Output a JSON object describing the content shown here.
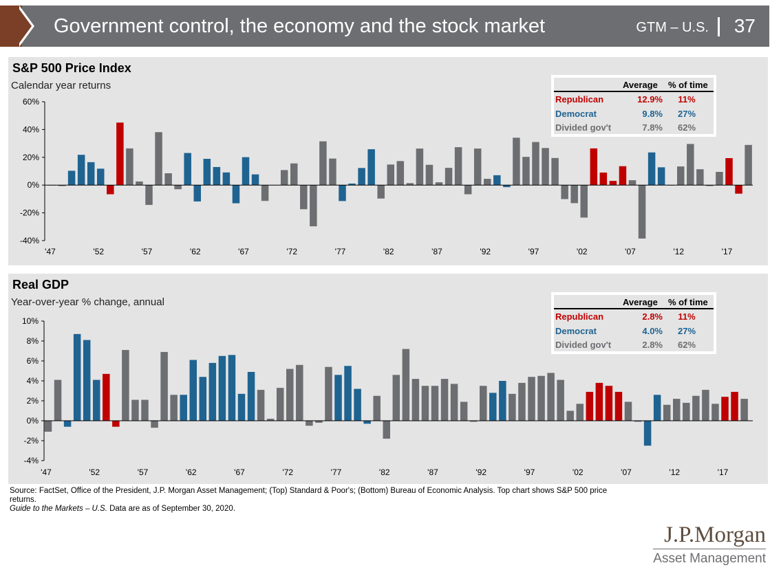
{
  "header": {
    "title": "Government control, the economy and the stock market",
    "gtm": "GTM – U.S.",
    "page_number": "37"
  },
  "colors": {
    "republican": "#c00000",
    "democrat": "#1f6391",
    "divided": "#6d6e71",
    "header_bg": "#6d6e71",
    "header_tab": "#7b3f27",
    "panel_bg": "#e4e4e4"
  },
  "panel1": {
    "title": "S&P 500 Price Index",
    "subtitle": "Calendar year returns",
    "legend": {
      "col_average": "Average",
      "col_pct": "% of time",
      "rows": [
        {
          "name": "Republican",
          "average": "12.9%",
          "pct": "11%",
          "color": "#c00000"
        },
        {
          "name": "Democrat",
          "average": "9.8%",
          "pct": "27%",
          "color": "#1f6391"
        },
        {
          "name": "Divided gov't",
          "average": "7.8%",
          "pct": "62%",
          "color": "#6d6e71"
        }
      ]
    }
  },
  "panel2": {
    "title": "Real GDP",
    "subtitle": "Year-over-year % change, annual",
    "legend": {
      "col_average": "Average",
      "col_pct": "% of time",
      "rows": [
        {
          "name": "Republican",
          "average": "2.8%",
          "pct": "11%",
          "color": "#c00000"
        },
        {
          "name": "Democrat",
          "average": "4.0%",
          "pct": "27%",
          "color": "#1f6391"
        },
        {
          "name": "Divided gov't",
          "average": "2.8%",
          "pct": "62%",
          "color": "#6d6e71"
        }
      ]
    }
  },
  "chart_data": [
    {
      "type": "bar",
      "title": "S&P 500 Price Index",
      "subtitle": "Calendar year returns",
      "ylim": [
        -40,
        60
      ],
      "yticks": [
        "60%",
        "40%",
        "20%",
        "0%",
        "-20%",
        "-40%"
      ],
      "ytick_values": [
        60,
        40,
        20,
        0,
        -20,
        -40
      ],
      "xtick_labels": [
        "'47",
        "'52",
        "'57",
        "'62",
        "'67",
        "'72",
        "'77",
        "'82",
        "'87",
        "'92",
        "'97",
        "'02",
        "'07",
        "'12",
        "'17"
      ],
      "xtick_years": [
        1947,
        1952,
        1957,
        1962,
        1967,
        1972,
        1977,
        1982,
        1987,
        1992,
        1997,
        2002,
        2007,
        2012,
        2017
      ],
      "grid": false,
      "categories": [
        1947,
        1948,
        1949,
        1950,
        1951,
        1952,
        1953,
        1954,
        1955,
        1956,
        1957,
        1958,
        1959,
        1960,
        1961,
        1962,
        1963,
        1964,
        1965,
        1966,
        1967,
        1968,
        1969,
        1970,
        1971,
        1972,
        1973,
        1974,
        1975,
        1976,
        1977,
        1978,
        1979,
        1980,
        1981,
        1982,
        1983,
        1984,
        1985,
        1986,
        1987,
        1988,
        1989,
        1990,
        1991,
        1992,
        1993,
        1994,
        1995,
        1996,
        1997,
        1998,
        1999,
        2000,
        2001,
        2002,
        2003,
        2004,
        2005,
        2006,
        2007,
        2008,
        2009,
        2010,
        2011,
        2012,
        2013,
        2014,
        2015,
        2016,
        2017,
        2018,
        2019
      ],
      "values": [
        0.0,
        -0.7,
        10.3,
        21.8,
        16.5,
        11.8,
        -6.6,
        45.0,
        26.4,
        2.6,
        -14.3,
        38.1,
        8.5,
        -3.0,
        23.1,
        -11.8,
        18.9,
        13.0,
        9.1,
        -13.1,
        20.1,
        7.7,
        -11.4,
        0.1,
        10.8,
        15.6,
        -17.4,
        -29.7,
        31.5,
        19.1,
        -11.5,
        1.1,
        12.3,
        25.8,
        -9.7,
        14.8,
        17.3,
        1.4,
        26.3,
        14.6,
        2.0,
        12.4,
        27.3,
        -6.6,
        26.3,
        4.5,
        7.1,
        -1.5,
        34.1,
        20.3,
        31.0,
        26.7,
        19.5,
        -10.1,
        -13.0,
        -23.4,
        26.4,
        9.0,
        3.0,
        13.6,
        3.5,
        -38.5,
        23.5,
        12.8,
        0.0,
        13.4,
        29.6,
        11.4,
        -0.7,
        9.5,
        19.4,
        -6.2,
        28.9
      ],
      "party": [
        "G",
        "G",
        "D",
        "D",
        "D",
        "D",
        "R",
        "R",
        "G",
        "G",
        "G",
        "G",
        "G",
        "G",
        "D",
        "D",
        "D",
        "D",
        "D",
        "D",
        "D",
        "D",
        "G",
        "G",
        "G",
        "G",
        "G",
        "G",
        "G",
        "G",
        "D",
        "D",
        "D",
        "D",
        "G",
        "G",
        "G",
        "G",
        "G",
        "G",
        "G",
        "G",
        "G",
        "G",
        "G",
        "G",
        "D",
        "D",
        "G",
        "G",
        "G",
        "G",
        "G",
        "G",
        "G",
        "G",
        "R",
        "R",
        "R",
        "R",
        "G",
        "G",
        "D",
        "D",
        "G",
        "G",
        "G",
        "G",
        "G",
        "G",
        "R",
        "R",
        "G"
      ]
    },
    {
      "type": "bar",
      "title": "Real GDP",
      "subtitle": "Year-over-year % change, annual",
      "ylim": [
        -4,
        10
      ],
      "yticks": [
        "10%",
        "8%",
        "6%",
        "4%",
        "2%",
        "0%",
        "-2%",
        "-4%"
      ],
      "ytick_values": [
        10,
        8,
        6,
        4,
        2,
        0,
        -2,
        -4
      ],
      "xtick_labels": [
        "'47",
        "'52",
        "'57",
        "'62",
        "'67",
        "'72",
        "'77",
        "'82",
        "'87",
        "'92",
        "'97",
        "'02",
        "'07",
        "'12",
        "'17"
      ],
      "xtick_years": [
        1947,
        1952,
        1957,
        1962,
        1967,
        1972,
        1977,
        1982,
        1987,
        1992,
        1997,
        2002,
        2007,
        2012,
        2017
      ],
      "grid": false,
      "categories": [
        1947,
        1948,
        1949,
        1950,
        1951,
        1952,
        1953,
        1954,
        1955,
        1956,
        1957,
        1958,
        1959,
        1960,
        1961,
        1962,
        1963,
        1964,
        1965,
        1966,
        1967,
        1968,
        1969,
        1970,
        1971,
        1972,
        1973,
        1974,
        1975,
        1976,
        1977,
        1978,
        1979,
        1980,
        1981,
        1982,
        1983,
        1984,
        1985,
        1986,
        1987,
        1988,
        1989,
        1990,
        1991,
        1992,
        1993,
        1994,
        1995,
        1996,
        1997,
        1998,
        1999,
        2000,
        2001,
        2002,
        2003,
        2004,
        2005,
        2006,
        2007,
        2008,
        2009,
        2010,
        2011,
        2012,
        2013,
        2014,
        2015,
        2016,
        2017,
        2018,
        2019
      ],
      "values": [
        -1.1,
        4.1,
        -0.6,
        8.7,
        8.1,
        4.1,
        4.7,
        -0.6,
        7.1,
        2.1,
        2.1,
        -0.7,
        6.9,
        2.6,
        2.6,
        6.1,
        4.4,
        5.8,
        6.5,
        6.6,
        2.7,
        4.9,
        3.1,
        0.2,
        3.3,
        5.2,
        5.6,
        -0.5,
        -0.2,
        5.4,
        4.6,
        5.5,
        3.2,
        -0.3,
        2.5,
        -1.8,
        4.6,
        7.2,
        4.2,
        3.5,
        3.5,
        4.2,
        3.7,
        1.9,
        -0.1,
        3.5,
        2.8,
        4.0,
        2.7,
        3.8,
        4.4,
        4.5,
        4.8,
        4.1,
        1.0,
        1.7,
        2.9,
        3.8,
        3.5,
        2.9,
        1.9,
        -0.1,
        -2.5,
        2.6,
        1.6,
        2.2,
        1.8,
        2.5,
        3.1,
        1.7,
        2.4,
        2.9,
        2.2
      ],
      "party": [
        "G",
        "G",
        "D",
        "D",
        "D",
        "D",
        "R",
        "R",
        "G",
        "G",
        "G",
        "G",
        "G",
        "G",
        "D",
        "D",
        "D",
        "D",
        "D",
        "D",
        "D",
        "D",
        "G",
        "G",
        "G",
        "G",
        "G",
        "G",
        "G",
        "G",
        "D",
        "D",
        "D",
        "D",
        "G",
        "G",
        "G",
        "G",
        "G",
        "G",
        "G",
        "G",
        "G",
        "G",
        "G",
        "G",
        "D",
        "D",
        "G",
        "G",
        "G",
        "G",
        "G",
        "G",
        "G",
        "G",
        "R",
        "R",
        "R",
        "R",
        "G",
        "G",
        "D",
        "D",
        "G",
        "G",
        "G",
        "G",
        "G",
        "G",
        "R",
        "R",
        "G"
      ]
    }
  ],
  "footer": {
    "source": "Source: FactSet, Office of the President, J.P. Morgan Asset Management; (Top) Standard & Poor's; (Bottom) Bureau of Economic Analysis. Top chart shows S&P 500 price returns.",
    "guide": "Guide to the Markets – U.S.",
    "asof": " Data are as of September 30, 2020."
  },
  "logo": {
    "name": "J.P.Morgan",
    "sub": "Asset Management"
  }
}
